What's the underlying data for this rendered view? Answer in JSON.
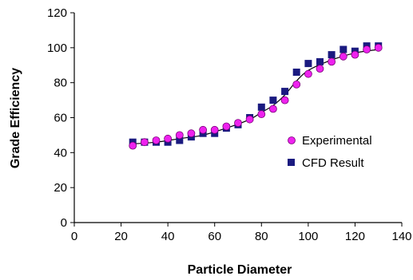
{
  "chart_data": {
    "type": "scatter",
    "title": "",
    "xlabel": "Particle Diameter",
    "ylabel": "Grade Efficiency",
    "xlim": [
      0,
      140
    ],
    "ylim": [
      0,
      120
    ],
    "xticks": [
      0,
      20,
      40,
      60,
      80,
      100,
      120,
      140
    ],
    "yticks": [
      0,
      20,
      40,
      60,
      80,
      100,
      120
    ],
    "grid": false,
    "legend_position": "right-middle",
    "series": [
      {
        "name": "Experimental",
        "marker": "circle",
        "color": "#ee22ee",
        "x": [
          25,
          30,
          35,
          40,
          45,
          50,
          55,
          60,
          65,
          70,
          75,
          80,
          85,
          90,
          95,
          100,
          105,
          110,
          115,
          120,
          125,
          130
        ],
        "y": [
          44,
          46,
          47,
          48,
          50,
          51,
          53,
          53,
          55,
          57,
          59,
          62,
          65,
          70,
          79,
          85,
          88,
          92,
          95,
          96,
          99,
          100
        ]
      },
      {
        "name": "CFD Result",
        "marker": "square",
        "color": "#1a1a80",
        "x": [
          25,
          30,
          35,
          40,
          45,
          50,
          55,
          60,
          65,
          70,
          75,
          80,
          85,
          90,
          95,
          100,
          105,
          110,
          115,
          120,
          125,
          130
        ],
        "y": [
          46,
          46,
          46,
          46,
          47,
          49,
          51,
          51,
          54,
          56,
          60,
          66,
          70,
          75,
          86,
          91,
          92,
          96,
          99,
          98,
          101,
          101
        ]
      }
    ],
    "fit_curve": {
      "color": "#000000",
      "x": [
        25,
        35,
        45,
        55,
        65,
        75,
        80,
        85,
        90,
        95,
        100,
        110,
        120,
        130
      ],
      "y": [
        45,
        46,
        48,
        50,
        54,
        59,
        63,
        67,
        73,
        81,
        87,
        93,
        97,
        99
      ]
    }
  }
}
